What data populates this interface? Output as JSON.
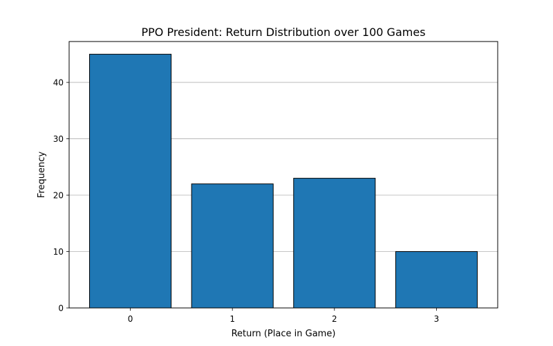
{
  "chart_data": {
    "type": "bar",
    "title": "PPO President: Return Distribution over 100 Games",
    "xlabel": "Return (Place in Game)",
    "ylabel": "Frequency",
    "categories": [
      "0",
      "1",
      "2",
      "3"
    ],
    "values": [
      45,
      22,
      23,
      10
    ],
    "ylim": [
      0,
      47.25
    ],
    "yticks": [
      0,
      10,
      20,
      30,
      40
    ],
    "grid": "y-axis only",
    "bar_color": "#1f77b4",
    "edge_color": "#000000"
  }
}
